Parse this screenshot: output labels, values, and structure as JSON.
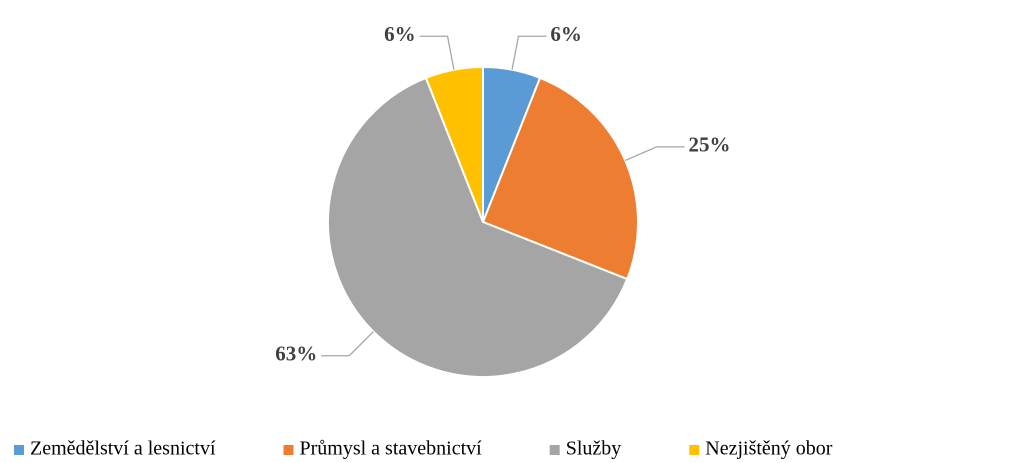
{
  "chart_data": {
    "type": "pie",
    "categories": [
      "Zemědělství a lesnictví",
      "Průmysl a stavebnictví",
      "Služby",
      "Nezjištěný obor"
    ],
    "values": [
      6,
      25,
      63,
      6
    ],
    "value_labels": [
      "6%",
      "25%",
      "63%",
      "6%"
    ],
    "colors": [
      "#5b9bd5",
      "#ed7d31",
      "#a5a5a5",
      "#ffc000"
    ],
    "legend": "bottom"
  }
}
